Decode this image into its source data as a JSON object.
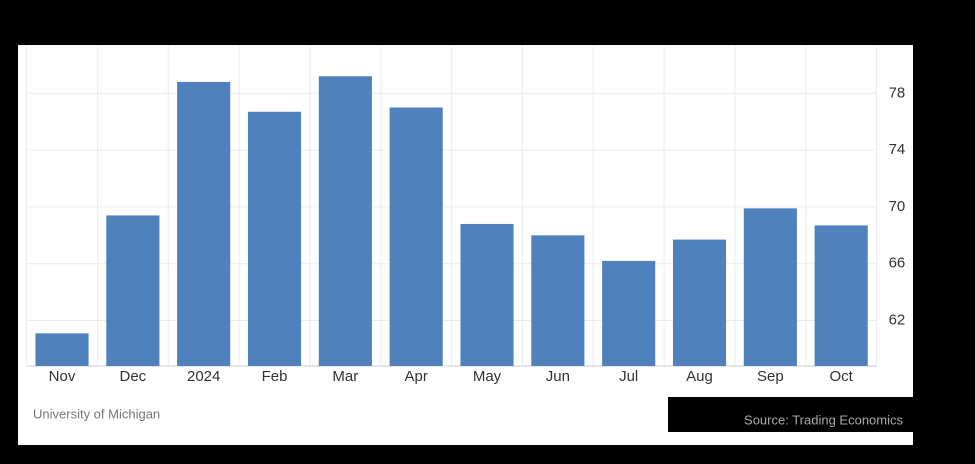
{
  "chart_data": {
    "type": "bar",
    "categories": [
      "Nov",
      "Dec",
      "2024",
      "Feb",
      "Mar",
      "Apr",
      "May",
      "Jun",
      "Jul",
      "Aug",
      "Sep",
      "Oct"
    ],
    "values": [
      61.1,
      69.4,
      78.8,
      76.7,
      79.2,
      77.0,
      68.8,
      68.0,
      66.2,
      67.7,
      69.9,
      68.7
    ],
    "color": "#4f81bd",
    "ylim": [
      58.8,
      81.4
    ],
    "yticks": [
      62,
      66,
      70,
      74,
      78
    ],
    "grid": true,
    "y_axis_side": "right",
    "source_left": "University of Michigan",
    "source_right": "Source: Trading Economics"
  }
}
